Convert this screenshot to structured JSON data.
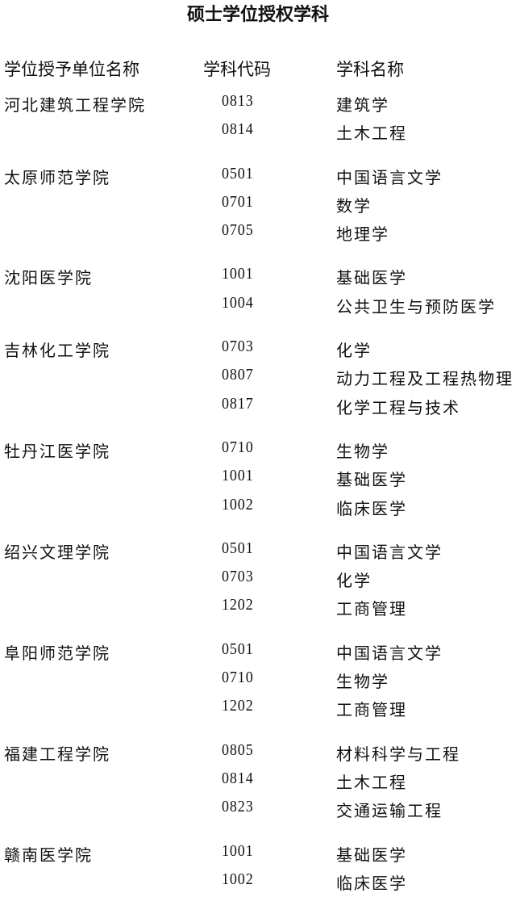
{
  "title": "硕士学位授权学科",
  "headers": {
    "institution": "学位授予单位名称",
    "code": "学科代码",
    "subject": "学科名称"
  },
  "groups": [
    {
      "institution": "河北建筑工程学院",
      "rows": [
        {
          "code": "0813",
          "subject": "建筑学"
        },
        {
          "code": "0814",
          "subject": "土木工程"
        }
      ]
    },
    {
      "institution": "太原师范学院",
      "rows": [
        {
          "code": "0501",
          "subject": "中国语言文学"
        },
        {
          "code": "0701",
          "subject": "数学"
        },
        {
          "code": "0705",
          "subject": "地理学"
        }
      ]
    },
    {
      "institution": "沈阳医学院",
      "rows": [
        {
          "code": "1001",
          "subject": "基础医学"
        },
        {
          "code": "1004",
          "subject": "公共卫生与预防医学"
        }
      ]
    },
    {
      "institution": "吉林化工学院",
      "rows": [
        {
          "code": "0703",
          "subject": "化学"
        },
        {
          "code": "0807",
          "subject": "动力工程及工程热物理"
        },
        {
          "code": "0817",
          "subject": "化学工程与技术"
        }
      ]
    },
    {
      "institution": "牡丹江医学院",
      "rows": [
        {
          "code": "0710",
          "subject": "生物学"
        },
        {
          "code": "1001",
          "subject": "基础医学"
        },
        {
          "code": "1002",
          "subject": "临床医学"
        }
      ]
    },
    {
      "institution": "绍兴文理学院",
      "rows": [
        {
          "code": "0501",
          "subject": "中国语言文学"
        },
        {
          "code": "0703",
          "subject": "化学"
        },
        {
          "code": "1202",
          "subject": "工商管理"
        }
      ]
    },
    {
      "institution": "阜阳师范学院",
      "rows": [
        {
          "code": "0501",
          "subject": "中国语言文学"
        },
        {
          "code": "0710",
          "subject": "生物学"
        },
        {
          "code": "1202",
          "subject": "工商管理"
        }
      ]
    },
    {
      "institution": "福建工程学院",
      "rows": [
        {
          "code": "0805",
          "subject": "材料科学与工程"
        },
        {
          "code": "0814",
          "subject": "土木工程"
        },
        {
          "code": "0823",
          "subject": "交通运输工程"
        }
      ]
    },
    {
      "institution": "赣南医学院",
      "rows": [
        {
          "code": "1001",
          "subject": "基础医学"
        },
        {
          "code": "1002",
          "subject": "临床医学"
        }
      ]
    }
  ]
}
